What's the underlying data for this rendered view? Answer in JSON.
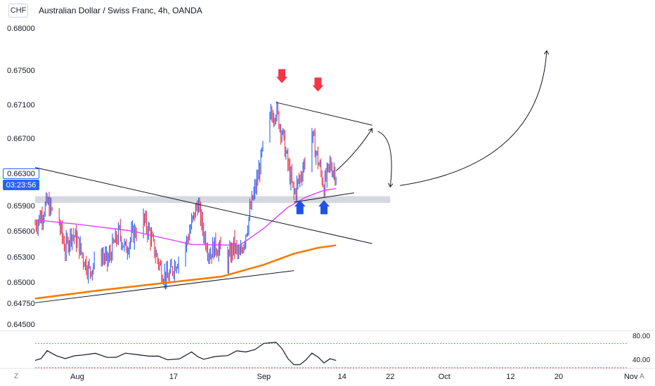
{
  "header": {
    "badge": "CHF",
    "title": "Australian Dollar / Swiss Franc, 4h, OANDA"
  },
  "price_tags": {
    "last_price": "0.66300",
    "countdown": "03:23:56"
  },
  "corner_labels": {
    "left": "Z",
    "right": "A"
  },
  "colors": {
    "up_candle": "#2962ff",
    "down_candle": "#f23645",
    "ma_fast": "#e040fb",
    "ma_slow": "#f57c00",
    "support_zone": "#d1d4dc",
    "arrow_down": "#f23645",
    "arrow_up": "#1e53e5"
  },
  "chart_data": [
    {
      "type": "candlestick",
      "title": "Australian Dollar / Swiss Franc, 4h, OANDA",
      "ylim": [
        0.6445,
        0.6835
      ],
      "yticks": [
        "0.68000",
        "0.67500",
        "0.67100",
        "0.66700",
        "0.66300",
        "0.65900",
        "0.65600",
        "0.65300",
        "0.65000",
        "0.64750",
        "0.64500"
      ],
      "ytick_values": [
        0.68,
        0.675,
        0.671,
        0.667,
        0.663,
        0.659,
        0.656,
        0.653,
        0.65,
        0.6475,
        0.645
      ],
      "x_date_range": [
        "2024-07-25",
        "2024-11-05"
      ],
      "xticks": [
        {
          "label": "Aug",
          "date": "2024-08-01"
        },
        {
          "label": "17",
          "date": "2024-08-17"
        },
        {
          "label": "Sep",
          "date": "2024-09-01"
        },
        {
          "label": "14",
          "date": "2024-09-14"
        },
        {
          "label": "22",
          "date": "2024-09-22"
        },
        {
          "label": "Oct",
          "date": "2024-10-01"
        },
        {
          "label": "12",
          "date": "2024-10-12"
        },
        {
          "label": "20",
          "date": "2024-10-20"
        },
        {
          "label": "Nov",
          "date": "2024-11-01"
        }
      ],
      "price_path": [
        [
          "2024-07-25",
          0.657
        ],
        [
          "2024-07-26",
          0.658
        ],
        [
          "2024-07-27",
          0.6595
        ],
        [
          "2024-07-29",
          0.657
        ],
        [
          "2024-07-30",
          0.654
        ],
        [
          "2024-07-31",
          0.656
        ],
        [
          "2024-08-01",
          0.655
        ],
        [
          "2024-08-02",
          0.653
        ],
        [
          "2024-08-03",
          0.6515
        ],
        [
          "2024-08-05",
          0.6535
        ],
        [
          "2024-08-06",
          0.6525
        ],
        [
          "2024-08-07",
          0.6545
        ],
        [
          "2024-08-08",
          0.656
        ],
        [
          "2024-08-09",
          0.654
        ],
        [
          "2024-08-10",
          0.6555
        ],
        [
          "2024-08-12",
          0.6575
        ],
        [
          "2024-08-13",
          0.656
        ],
        [
          "2024-08-14",
          0.6535
        ],
        [
          "2024-08-15",
          0.6515
        ],
        [
          "2024-08-16",
          0.6505
        ],
        [
          "2024-08-17",
          0.652
        ],
        [
          "2024-08-19",
          0.6545
        ],
        [
          "2024-08-20",
          0.657
        ],
        [
          "2024-08-21",
          0.6595
        ],
        [
          "2024-08-22",
          0.656
        ],
        [
          "2024-08-23",
          0.6535
        ],
        [
          "2024-08-24",
          0.6545
        ],
        [
          "2024-08-26",
          0.6525
        ],
        [
          "2024-08-27",
          0.6545
        ],
        [
          "2024-08-28",
          0.653
        ],
        [
          "2024-08-29",
          0.656
        ],
        [
          "2024-08-30",
          0.6595
        ],
        [
          "2024-08-31",
          0.6625
        ],
        [
          "2024-09-01",
          0.6665
        ],
        [
          "2024-09-02",
          0.6695
        ],
        [
          "2024-09-03",
          0.6705
        ],
        [
          "2024-09-04",
          0.668
        ],
        [
          "2024-09-05",
          0.664
        ],
        [
          "2024-09-06",
          0.6605
        ],
        [
          "2024-09-07",
          0.6625
        ],
        [
          "2024-09-08",
          0.665
        ],
        [
          "2024-09-09",
          0.6675
        ],
        [
          "2024-09-10",
          0.6645
        ],
        [
          "2024-09-11",
          0.6615
        ],
        [
          "2024-09-12",
          0.664
        ],
        [
          "2024-09-13",
          0.663
        ]
      ],
      "last_price": 0.663,
      "moving_averages": [
        {
          "color": "#e040fb",
          "points": [
            [
              "2024-07-25",
              0.6575
            ],
            [
              "2024-08-01",
              0.657
            ],
            [
              "2024-08-10",
              0.6562
            ],
            [
              "2024-08-20",
              0.6546
            ],
            [
              "2024-08-28",
              0.6545
            ],
            [
              "2024-09-01",
              0.6565
            ],
            [
              "2024-09-05",
              0.659
            ],
            [
              "2024-09-08",
              0.6602
            ],
            [
              "2024-09-11",
              0.661
            ],
            [
              "2024-09-13",
              0.6612
            ]
          ]
        },
        {
          "color": "#f57c00",
          "points": [
            [
              "2024-07-25",
              0.6482
            ],
            [
              "2024-08-05",
              0.6492
            ],
            [
              "2024-08-15",
              0.65
            ],
            [
              "2024-08-25",
              0.6508
            ],
            [
              "2024-09-01",
              0.6522
            ],
            [
              "2024-09-06",
              0.6535
            ],
            [
              "2024-09-10",
              0.6542
            ],
            [
              "2024-09-13",
              0.6545
            ]
          ]
        }
      ],
      "drawings": {
        "trendlines": [
          [
            [
              "2024-07-25",
              0.6477
            ],
            [
              "2024-09-06",
              0.6515
            ]
          ],
          [
            [
              "2024-07-25",
              0.6637
            ],
            [
              "2024-09-19",
              0.6547
            ]
          ],
          [
            [
              "2024-09-03",
              0.6714
            ],
            [
              "2024-09-19",
              0.6687
            ]
          ],
          [
            [
              "2024-09-06",
              0.6596
            ],
            [
              "2024-09-16",
              0.6607
            ]
          ]
        ],
        "support_zone": {
          "from": "2024-07-25",
          "to": "2024-09-22",
          "y_low": 0.6595,
          "y_high": 0.6603
        },
        "down_arrows": [
          {
            "date": "2024-09-04",
            "price": 0.6745
          },
          {
            "date": "2024-09-10",
            "price": 0.6735
          }
        ],
        "up_arrows": [
          {
            "date": "2024-09-07",
            "price": 0.659
          },
          {
            "date": "2024-09-11",
            "price": 0.659
          }
        ],
        "projection_path": [
          [
            "2024-09-13",
            0.6633
          ],
          [
            "2024-09-19",
            0.6683
          ],
          [
            "2024-09-22",
            0.6614
          ],
          [
            "2024-10-18",
            0.6775
          ]
        ]
      }
    },
    {
      "type": "line",
      "name": "RSI",
      "ylim": [
        30,
        90
      ],
      "yticks": [
        "80.00",
        "40.00"
      ],
      "ytick_values": [
        80,
        40
      ],
      "upper_band": 70,
      "lower_band": 30,
      "points": [
        [
          "2024-07-25",
          42
        ],
        [
          "2024-07-27",
          58
        ],
        [
          "2024-07-30",
          45
        ],
        [
          "2024-08-02",
          51
        ],
        [
          "2024-08-06",
          47
        ],
        [
          "2024-08-09",
          54
        ],
        [
          "2024-08-13",
          49
        ],
        [
          "2024-08-16",
          43
        ],
        [
          "2024-08-20",
          56
        ],
        [
          "2024-08-22",
          44
        ],
        [
          "2024-08-26",
          50
        ],
        [
          "2024-08-29",
          56
        ],
        [
          "2024-09-01",
          70
        ],
        [
          "2024-09-03",
          72
        ],
        [
          "2024-09-05",
          45
        ],
        [
          "2024-09-07",
          35
        ],
        [
          "2024-09-09",
          54
        ],
        [
          "2024-09-11",
          38
        ],
        [
          "2024-09-13",
          42
        ]
      ]
    }
  ]
}
